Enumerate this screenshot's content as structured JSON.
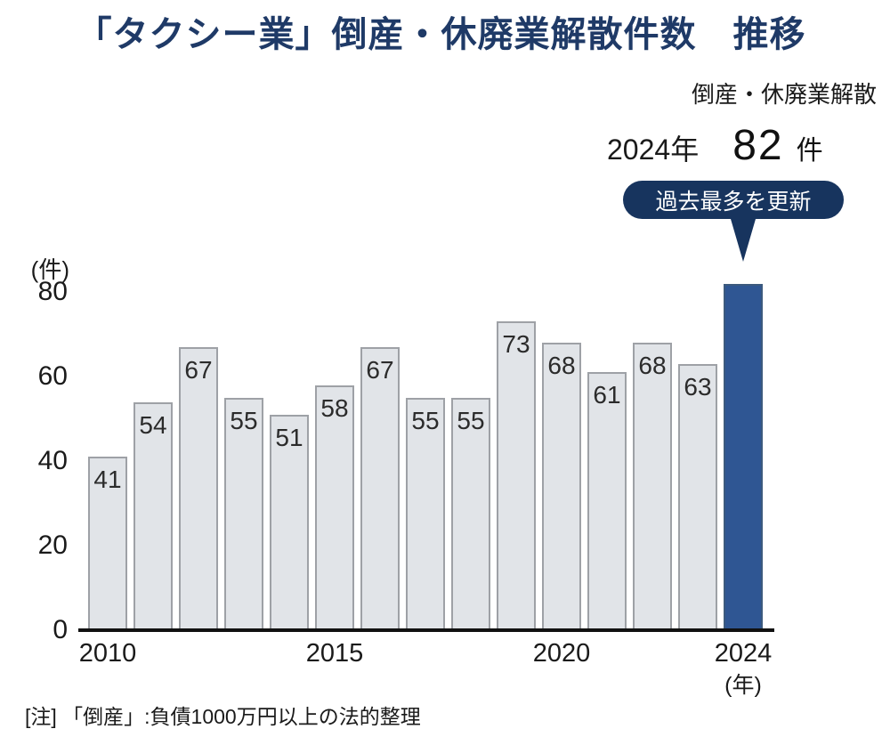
{
  "title": "「タクシー業」倒産・休廃業解散件数　推移",
  "legend_label": "倒産・休廃業解散",
  "highlight_stat": {
    "year_label": "2024年",
    "value": "82",
    "unit": "件",
    "badge_label": "過去最多を更新"
  },
  "y_axis": {
    "unit_label": "(件)",
    "ticks": [
      0,
      20,
      40,
      60,
      80
    ]
  },
  "x_axis": {
    "ticks": [
      {
        "label": "2010",
        "bar_index": 0
      },
      {
        "label": "2015",
        "bar_index": 5
      },
      {
        "label": "2020",
        "bar_index": 10
      },
      {
        "label": "2024",
        "bar_index": 14
      }
    ],
    "unit_label": "(年)"
  },
  "note": "[注] 「倒産」:負債1000万円以上の法的整理",
  "colors": {
    "title_navy": "#1f3a67",
    "badge_navy": "#17345e",
    "bar_blue": "#2f5693",
    "bar_gray_fill": "#e1e4e8",
    "bar_gray_border": "#9ea1a6",
    "text_black": "#1a1a1a"
  },
  "chart_data": {
    "type": "bar",
    "x": [
      2010,
      2011,
      2012,
      2013,
      2014,
      2015,
      2016,
      2017,
      2018,
      2019,
      2020,
      2021,
      2022,
      2023,
      2024
    ],
    "values": [
      41,
      54,
      67,
      55,
      51,
      58,
      67,
      55,
      55,
      73,
      68,
      61,
      68,
      63,
      82
    ],
    "highlight_index": 14,
    "title": "「タクシー業」倒産・休廃業解散件数　推移",
    "xlabel": "(年)",
    "ylabel": "(件)",
    "ylim": [
      0,
      86
    ],
    "grid": false,
    "legend_position": "none",
    "value_labels_shown_on_bars": [
      41,
      54,
      67,
      55,
      51,
      58,
      67,
      55,
      55,
      73,
      68,
      61,
      68,
      63
    ]
  }
}
